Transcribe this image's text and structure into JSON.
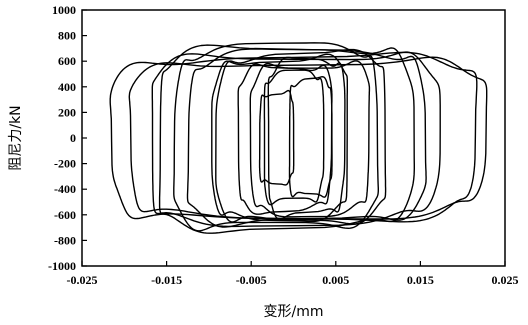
{
  "chart_data": {
    "type": "line",
    "title": "",
    "xlabel": "变形/mm",
    "ylabel": "阻尼力/kN",
    "xlim": [
      -0.025,
      0.025
    ],
    "ylim": [
      -1000,
      1000
    ],
    "x_ticks": [
      -0.025,
      -0.015,
      -0.005,
      0.005,
      0.015,
      0.025
    ],
    "x_tick_labels": [
      "-0.025",
      "-0.015",
      "-0.005",
      "0.005",
      "0.015",
      "0.025"
    ],
    "y_ticks": [
      1000,
      800,
      600,
      400,
      200,
      0,
      -200,
      -400,
      -600,
      -800,
      -1000
    ],
    "y_tick_labels": [
      "1000",
      "800",
      "600",
      "400",
      "200",
      "0",
      "-200",
      "-400",
      "-600",
      "-800",
      "-1000"
    ],
    "grid": false,
    "legend": "none",
    "loops": [
      {
        "amplitude": 0.0215,
        "force": 630,
        "center": 0.0
      },
      {
        "amplitude": 0.021,
        "force": 600,
        "center": 0.0015
      },
      {
        "amplitude": 0.017,
        "force": 650,
        "center": 0.0
      },
      {
        "amplitude": 0.015,
        "force": 700,
        "center": -0.001
      },
      {
        "amplitude": 0.014,
        "force": 660,
        "center": 0.0015
      },
      {
        "amplitude": 0.012,
        "force": 700,
        "center": -0.002
      },
      {
        "amplitude": 0.01,
        "force": 650,
        "center": 0.001
      },
      {
        "amplitude": 0.008,
        "force": 620,
        "center": -0.0015
      },
      {
        "amplitude": 0.007,
        "force": 580,
        "center": 0.002
      },
      {
        "amplitude": 0.0055,
        "force": 560,
        "center": -0.001
      },
      {
        "amplitude": 0.0045,
        "force": 600,
        "center": 0.0015
      },
      {
        "amplitude": 0.0035,
        "force": 500,
        "center": 0.0
      },
      {
        "amplitude": 0.0025,
        "force": 450,
        "center": 0.002
      },
      {
        "amplitude": 0.002,
        "force": 350,
        "center": -0.002
      }
    ]
  }
}
